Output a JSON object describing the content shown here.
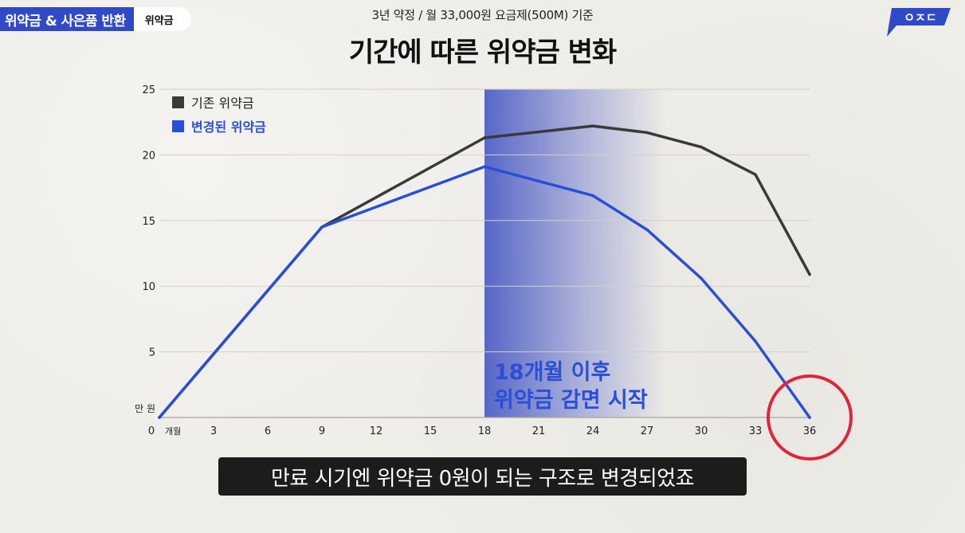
{
  "header": {
    "topic": "위약금 & 사은품 반환",
    "topic_sub": "위약금",
    "subtitle": "3년 약정 / 월 33,000원 요금제(500M) 기준",
    "title": "기간에 따른 위약금 변화",
    "brand": "ㅇㅈㄷ"
  },
  "colors": {
    "existing": "#3a3a3a",
    "changed": "#2a4fd6",
    "highlight": "#3d4fc2",
    "circle": "#e0253a",
    "topic": "#2f49c9"
  },
  "chart_data": {
    "type": "line",
    "x": [
      0,
      9,
      18,
      24,
      27,
      30,
      33,
      36
    ],
    "series": [
      {
        "name": "기존 위약금",
        "values": [
          0,
          14.5,
          21.3,
          22.2,
          21.7,
          20.6,
          18.5,
          10.9
        ]
      },
      {
        "name": "변경된 위약금",
        "values": [
          0,
          14.5,
          19.1,
          16.9,
          14.3,
          10.6,
          5.8,
          0
        ]
      }
    ],
    "xticks": [
      0,
      3,
      6,
      9,
      12,
      15,
      18,
      21,
      24,
      27,
      30,
      33,
      36
    ],
    "yticks": [
      5,
      10,
      15,
      20,
      25
    ],
    "xlim": [
      0,
      36
    ],
    "ylim": [
      0,
      25
    ],
    "xlabel": "개월",
    "ylabel": "만 원",
    "highlight_range": [
      18,
      28
    ],
    "highlight_annotation": [
      "18개월 이후",
      "위약금 감면 시작"
    ],
    "circled_x": 36,
    "legend": "top-left",
    "grid": true
  },
  "caption": "만료 시기엔 위약금 0원이 되는 구조로 변경되었죠"
}
